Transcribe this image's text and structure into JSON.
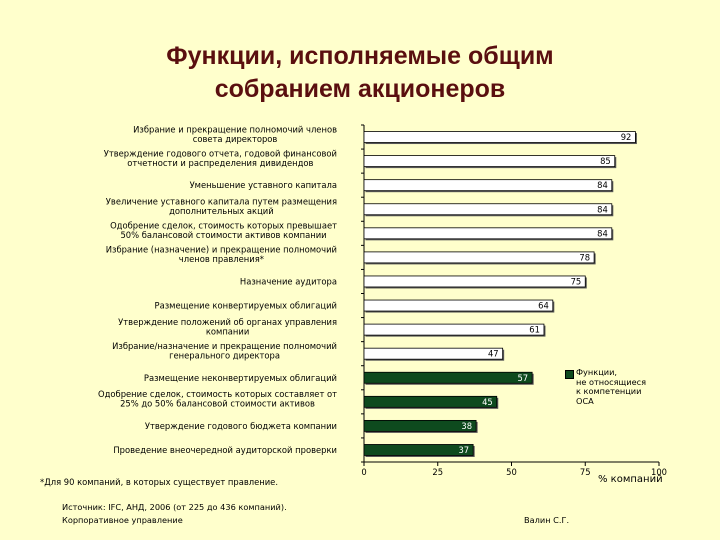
{
  "title_lines": [
    "Функции, исполняемые общим",
    "собранием акционеров"
  ],
  "chart_data": {
    "type": "bar",
    "orientation": "horizontal",
    "categories": [
      [
        "Избрание и прекращение полномочий членов",
        "совета директоров"
      ],
      [
        "Утверждение годового отчета, годовой финансовой",
        "отчетности и распределения дивидендов"
      ],
      [
        "Уменьшение уставного капитала"
      ],
      [
        "Увеличение уставного капитала путем размещения",
        "дополнительных акций"
      ],
      [
        "Одобрение сделок, стоимость которых превышает",
        "50% балансовой стоимости активов компании"
      ],
      [
        "Избрание (назначение) и прекращение полномочий",
        "членов правления*"
      ],
      [
        "Назначение аудитора"
      ],
      [
        "Размещение конвертируемых облигаций"
      ],
      [
        "Утверждение положений об органах управления",
        "компании"
      ],
      [
        "Избрание/назначение и прекращение полномочий",
        "генерального директора"
      ],
      [
        "Размещение неконвертируемых облигаций"
      ],
      [
        "Одобрение сделок, стоимость которых составляет от",
        "25% до 50% балансовой стоимости активов"
      ],
      [
        "Утверждение годового бюджета компании"
      ],
      [
        "Проведение внеочередной аудиторской проверки"
      ]
    ],
    "series": [
      {
        "values": [
          92,
          85,
          84,
          84,
          84,
          78,
          75,
          64,
          61,
          47,
          57,
          45,
          38,
          37
        ],
        "color": "#ffffff"
      },
      {
        "name": "Функции, не относящиеся к компетенции ОСА",
        "values": [
          null,
          null,
          null,
          null,
          null,
          null,
          null,
          null,
          null,
          null,
          57,
          45,
          38,
          37
        ],
        "color": "#0e4a1e"
      }
    ],
    "xlim": [
      0,
      100
    ],
    "xticks": [
      0,
      25,
      50,
      75,
      100
    ],
    "xlabel": "% компаний",
    "grid": false,
    "legend_position": "right"
  },
  "legend_lines": [
    "Функции,",
    "не относящиеся",
    "к компетенции",
    "ОСА"
  ],
  "footnote": "*Для 90 компаний, в которых существует правление.",
  "source": "Источник: IFC, АНД, 2006 (от 225 до 436 компаний).",
  "footer_left": "Корпоративное управление",
  "footer_right": "Валин С.Г.",
  "colors": {
    "background": "#ffffcc",
    "title": "#5a0f0f",
    "bar": "#ffffff",
    "highlight_bar": "#0e4a1e",
    "highlight_text": "#ffffff"
  }
}
